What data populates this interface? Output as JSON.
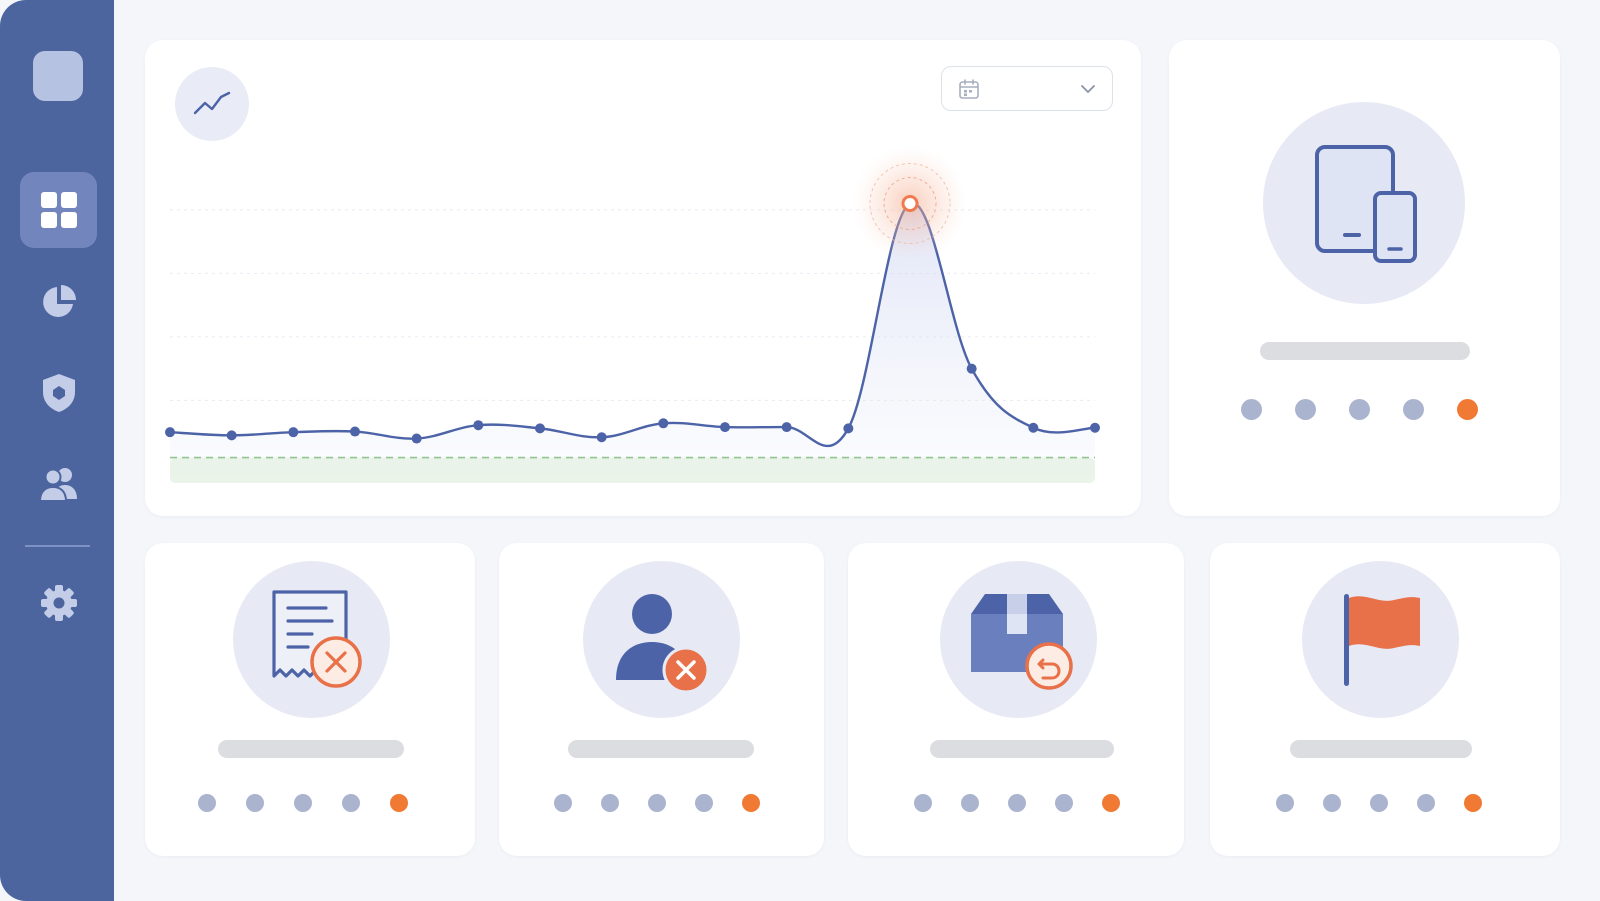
{
  "sidebar": {
    "items": [
      {
        "icon": "dashboard-grid-icon",
        "active": true
      },
      {
        "icon": "pie-chart-icon",
        "active": false
      },
      {
        "icon": "shield-icon",
        "active": false
      },
      {
        "icon": "users-icon",
        "active": false
      },
      {
        "icon": "gear-icon",
        "active": false
      }
    ]
  },
  "chart_card": {
    "badge_icon": "trend-line-icon",
    "date_picker": {
      "icon": "calendar-icon",
      "value": "",
      "chevron": "chevron-down-icon"
    }
  },
  "chart_data": {
    "type": "line",
    "title": "",
    "xlabel": "",
    "ylabel": "",
    "x": [
      1,
      2,
      3,
      4,
      5,
      6,
      7,
      8,
      9,
      10,
      11,
      12,
      13,
      14,
      15,
      16
    ],
    "series": [
      {
        "values": [
          10,
          9,
          10,
          10.2,
          8,
          12.2,
          11.2,
          8.4,
          12.8,
          11.6,
          11.6,
          11.2,
          82,
          30,
          11.4,
          11.4
        ]
      }
    ],
    "highlight_index": 12,
    "threshold": 2,
    "ylim": [
      -6,
      102
    ],
    "grid": true,
    "legend": "none",
    "colors": {
      "line": "#4d63a8",
      "highlight": "#ef7a4f",
      "threshold": "#7fbd78",
      "threshold_fill": "#eaf5e6"
    }
  },
  "cards": [
    {
      "name": "device-card",
      "icon": "devices-icon",
      "pagination": {
        "total": 5,
        "active": 5
      }
    },
    {
      "name": "receipt-card",
      "icon": "receipt-cancel-icon",
      "pagination": {
        "total": 5,
        "active": 5
      }
    },
    {
      "name": "user-card",
      "icon": "user-remove-icon",
      "pagination": {
        "total": 5,
        "active": 5
      }
    },
    {
      "name": "package-card",
      "icon": "package-return-icon",
      "pagination": {
        "total": 5,
        "active": 5
      }
    },
    {
      "name": "flag-card",
      "icon": "flag-icon",
      "pagination": {
        "total": 5,
        "active": 5
      }
    }
  ],
  "colors": {
    "sidebar": "#4d659f",
    "accent": "#f07a34",
    "icon_blue": "#4d63a8",
    "icon_orange": "#e8714a",
    "dot": "#aab4cf"
  }
}
